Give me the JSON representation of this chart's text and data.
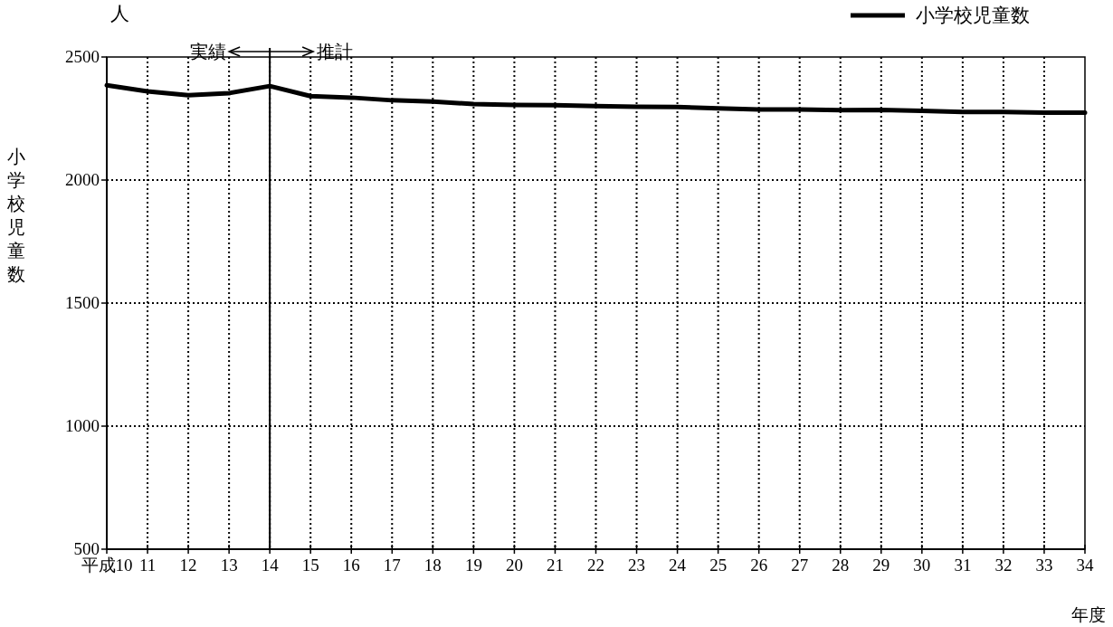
{
  "chart_data": {
    "type": "line",
    "categories": [
      "平成10",
      "11",
      "12",
      "13",
      "14",
      "15",
      "16",
      "17",
      "18",
      "19",
      "20",
      "21",
      "22",
      "23",
      "24",
      "25",
      "26",
      "27",
      "28",
      "29",
      "30",
      "31",
      "32",
      "33",
      "34"
    ],
    "series": [
      {
        "name": "小学校児童数",
        "color": "#000000",
        "values": [
          2385,
          2360,
          2345,
          2353,
          2382,
          2341,
          2335,
          2324,
          2319,
          2309,
          2305,
          2304,
          2301,
          2298,
          2297,
          2291,
          2287,
          2287,
          2284,
          2285,
          2281,
          2277,
          2277,
          2274,
          2274
        ]
      }
    ],
    "xlabel": "年度",
    "ylabel": "小学校児童数",
    "ylim": [
      500,
      2500
    ],
    "yticks": [
      500,
      1000,
      1500,
      2000,
      2500
    ],
    "grid": true,
    "legend": "top right",
    "line_style": "solid",
    "ref_lines": [
      {
        "axis": "x",
        "value": "14"
      }
    ],
    "annotations": [
      "人",
      "実績",
      "推計"
    ]
  }
}
